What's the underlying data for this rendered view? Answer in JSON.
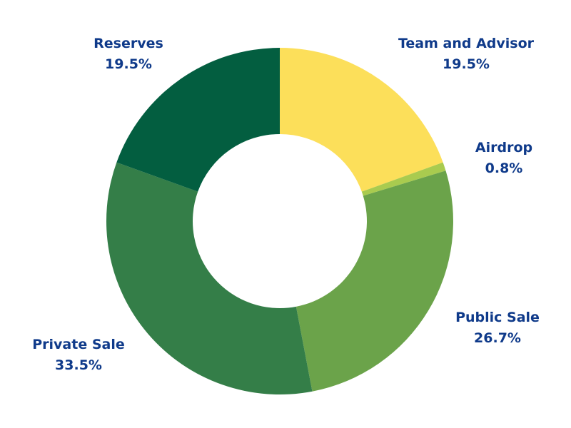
{
  "chart_data": {
    "type": "pie",
    "donut": true,
    "slices": [
      {
        "label": "Team and Advisor",
        "value": 19.5,
        "value_label": "19.5%",
        "color": "#fcdf5a"
      },
      {
        "label": "Airdrop",
        "value": 0.8,
        "value_label": "0.8%",
        "color": "#a9cb4f"
      },
      {
        "label": "Public Sale",
        "value": 26.7,
        "value_label": "26.7%",
        "color": "#6ba34a"
      },
      {
        "label": "Private Sale",
        "value": 33.5,
        "value_label": "33.5%",
        "color": "#347e48"
      },
      {
        "label": "Reserves",
        "value": 19.5,
        "value_label": "19.5%",
        "color": "#035e40"
      }
    ],
    "label_color": "#0f3a8a"
  }
}
